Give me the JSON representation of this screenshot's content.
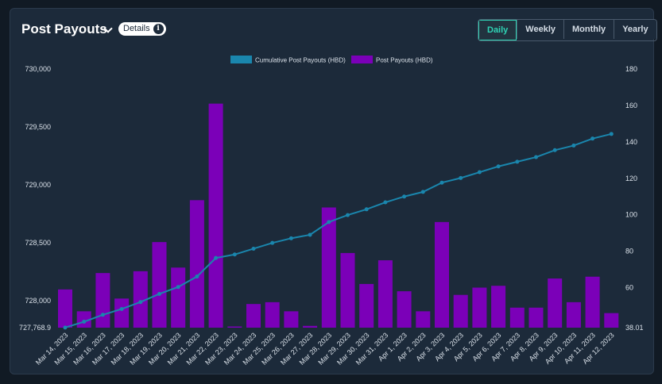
{
  "header": {
    "title": "Post Payouts",
    "details_label": "Details",
    "info_glyph": "i"
  },
  "period_tabs": [
    {
      "label": "Daily",
      "active": true
    },
    {
      "label": "Weekly",
      "active": false
    },
    {
      "label": "Monthly",
      "active": false
    },
    {
      "label": "Yearly",
      "active": false
    }
  ],
  "colors": {
    "bar": "#7b00b8",
    "line": "#1a86ad"
  },
  "chart_data": {
    "type": "bar+line",
    "categories": [
      "Mar 14, 2023",
      "Mar 15, 2023",
      "Mar 16, 2023",
      "Mar 17, 2023",
      "Mar 18, 2023",
      "Mar 19, 2023",
      "Mar 20, 2023",
      "Mar 21, 2023",
      "Mar 22, 2023",
      "Mar 23, 2023",
      "Mar 24, 2023",
      "Mar 25, 2023",
      "Mar 26, 2023",
      "Mar 27, 2023",
      "Mar 28, 2023",
      "Mar 29, 2023",
      "Mar 30, 2023",
      "Mar 31, 2023",
      "Apr 1, 2023",
      "Apr 2, 2023",
      "Apr 3, 2023",
      "Apr 4, 2023",
      "Apr 5, 2023",
      "Apr 6, 2023",
      "Apr 7, 2023",
      "Apr 8, 2023",
      "Apr 9, 2023",
      "Apr 10, 2023",
      "Apr 11, 2023",
      "Apr 12, 2023"
    ],
    "series": [
      {
        "name": "Cumulative Post Payouts (HBD)",
        "type": "line",
        "axis": "left",
        "values": [
          727770,
          727820,
          727880,
          727930,
          727990,
          728060,
          728120,
          728210,
          728370,
          728400,
          728450,
          728500,
          728540,
          728570,
          728680,
          728740,
          728790,
          728850,
          728900,
          728940,
          729020,
          729060,
          729110,
          729160,
          729200,
          729240,
          729300,
          729340,
          729400,
          729440
        ]
      },
      {
        "name": "Post Payouts (HBD)",
        "type": "bar",
        "axis": "right",
        "values": [
          59,
          47,
          68,
          54,
          69,
          85,
          71,
          108,
          161,
          38.01,
          51,
          52,
          47,
          39,
          104,
          79,
          62,
          75,
          58,
          47,
          96,
          56,
          60,
          61,
          49,
          49,
          65,
          52,
          66,
          46
        ]
      }
    ],
    "y_left": {
      "min": 727768.9,
      "max": 730000,
      "ticks": [
        730000,
        729500,
        729000,
        728500,
        728000
      ],
      "tick_labels": [
        "730,000",
        "729,500",
        "729,000",
        "728,500",
        "728,000"
      ],
      "min_label": "727,768.9"
    },
    "y_right": {
      "min": 38.01,
      "max": 180,
      "ticks": [
        180,
        160,
        140,
        120,
        100,
        80,
        60
      ],
      "tick_labels": [
        "180",
        "160",
        "140",
        "120",
        "100",
        "80",
        "60"
      ],
      "min_label": "38.01"
    },
    "legend_position": "top-center",
    "grid": false
  }
}
